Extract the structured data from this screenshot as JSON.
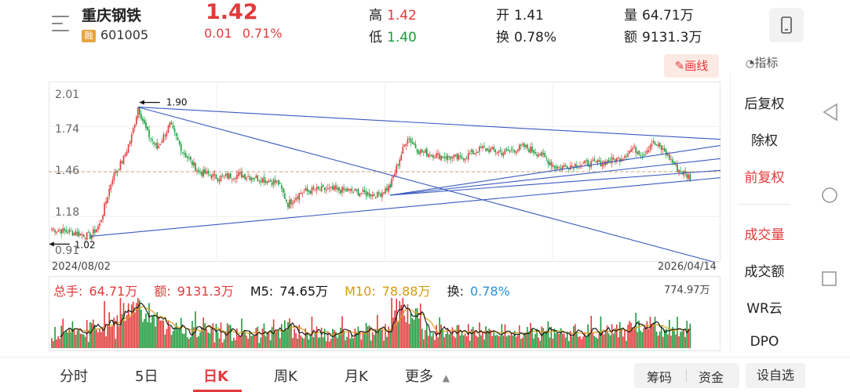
{
  "header": {
    "stock_name": "重庆钢铁",
    "badge": "融",
    "stock_code": "601005",
    "price": "1.42",
    "change": "0.01",
    "change_pct": "0.71%",
    "high_label": "高",
    "high": "1.42",
    "low_label": "低",
    "low": "1.40",
    "open_label": "开",
    "open": "1.41",
    "turnover_label": "换",
    "turnover": "0.78%",
    "volume_label": "量",
    "volume": "64.71万",
    "amount_label": "额",
    "amount": "9131.3万"
  },
  "toolbar": {
    "draw_label": "画线",
    "indicator_label": "指标"
  },
  "side_menu": {
    "items": [
      "后复权",
      "除权",
      "前复权",
      "成交量",
      "成交额",
      "WR云",
      "DPO"
    ],
    "active": [
      "前复权",
      "成交量"
    ]
  },
  "chart_data": {
    "type": "candlestick",
    "y_ticks": [
      "2.01",
      "1.74",
      "1.46",
      "1.18",
      "0.91"
    ],
    "ylim": [
      0.91,
      2.01
    ],
    "x_start": "2024/08/02",
    "x_end": "2026/04/14",
    "annotation_high": "1.90",
    "annotation_low": "1.02",
    "current_price_ref": 1.46,
    "key_points": [
      {
        "i": 0,
        "y": 1.07
      },
      {
        "i": 16,
        "y": 1.04
      },
      {
        "i": 24,
        "y": 1.02
      },
      {
        "i": 30,
        "y": 1.1
      },
      {
        "i": 38,
        "y": 1.42
      },
      {
        "i": 45,
        "y": 1.55
      },
      {
        "i": 50,
        "y": 1.7
      },
      {
        "i": 54,
        "y": 1.9
      },
      {
        "i": 60,
        "y": 1.72
      },
      {
        "i": 66,
        "y": 1.62
      },
      {
        "i": 74,
        "y": 1.78
      },
      {
        "i": 82,
        "y": 1.6
      },
      {
        "i": 92,
        "y": 1.46
      },
      {
        "i": 104,
        "y": 1.42
      },
      {
        "i": 118,
        "y": 1.44
      },
      {
        "i": 132,
        "y": 1.41
      },
      {
        "i": 142,
        "y": 1.38
      },
      {
        "i": 148,
        "y": 1.24
      },
      {
        "i": 156,
        "y": 1.32
      },
      {
        "i": 170,
        "y": 1.34
      },
      {
        "i": 186,
        "y": 1.33
      },
      {
        "i": 204,
        "y": 1.3
      },
      {
        "i": 212,
        "y": 1.36
      },
      {
        "i": 218,
        "y": 1.55
      },
      {
        "i": 223,
        "y": 1.7
      },
      {
        "i": 230,
        "y": 1.6
      },
      {
        "i": 242,
        "y": 1.57
      },
      {
        "i": 256,
        "y": 1.55
      },
      {
        "i": 270,
        "y": 1.62
      },
      {
        "i": 282,
        "y": 1.59
      },
      {
        "i": 296,
        "y": 1.63
      },
      {
        "i": 306,
        "y": 1.58
      },
      {
        "i": 316,
        "y": 1.49
      },
      {
        "i": 330,
        "y": 1.51
      },
      {
        "i": 344,
        "y": 1.52
      },
      {
        "i": 356,
        "y": 1.55
      },
      {
        "i": 364,
        "y": 1.62
      },
      {
        "i": 371,
        "y": 1.58
      },
      {
        "i": 376,
        "y": 1.66
      },
      {
        "i": 384,
        "y": 1.6
      },
      {
        "i": 392,
        "y": 1.48
      },
      {
        "i": 400,
        "y": 1.42
      }
    ],
    "candle_count": 401,
    "trendlines": [
      {
        "from": [
          54,
          1.9
        ],
        "to": [
          420,
          1.68
        ]
      },
      {
        "from": [
          54,
          1.9
        ],
        "to": [
          420,
          0.83
        ]
      },
      {
        "from": [
          24,
          1.02
        ],
        "to": [
          420,
          1.42
        ]
      },
      {
        "from": [
          212,
          1.3
        ],
        "to": [
          420,
          1.55
        ]
      },
      {
        "from": [
          212,
          1.3
        ],
        "to": [
          420,
          1.47
        ]
      },
      {
        "from": [
          212,
          1.3
        ],
        "to": [
          420,
          1.64
        ]
      }
    ],
    "volume": {
      "total_label": "总手:",
      "total": "64.71万",
      "amount_label": "额:",
      "amount": "9131.3万",
      "m5_label": "M5:",
      "m5": "74.65万",
      "m10_label": "M10:",
      "m10": "78.88万",
      "turnover_label": "换:",
      "turnover": "0.78%",
      "max": "774.97万"
    }
  },
  "tabs": {
    "items": [
      "分时",
      "5日",
      "日K",
      "周K",
      "月K",
      "更多"
    ],
    "active": "日K"
  },
  "tools": {
    "chip": "筹码",
    "fund": "资金",
    "settings": "设自选"
  },
  "colors": {
    "up": "#e23a3a",
    "down": "#1a9a3a",
    "trend": "#3a5bbf",
    "ma5": "#111111",
    "ma10": "#e0a020"
  }
}
